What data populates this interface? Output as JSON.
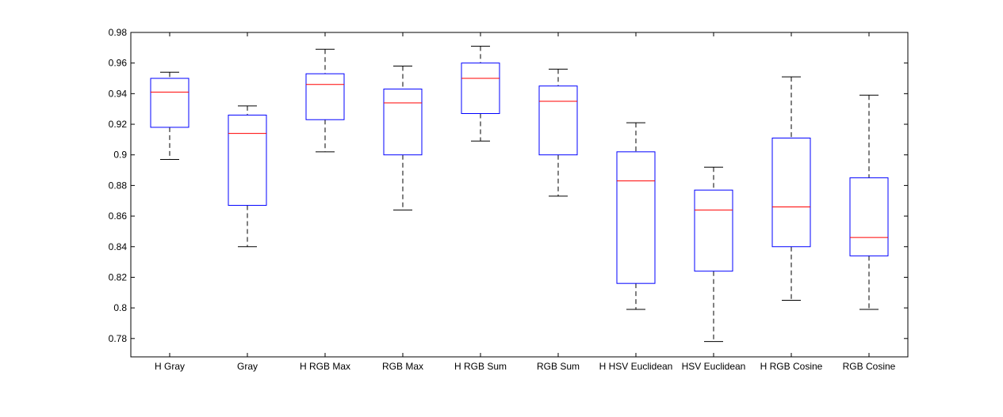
{
  "chart_data": {
    "type": "boxplot",
    "categories": [
      "H Gray",
      "Gray",
      "H RGB Max",
      "RGB Max",
      "H RGB Sum",
      "RGB Sum",
      "H HSV Euclidean",
      "HSV Euclidean",
      "H RGB Cosine",
      "RGB Cosine"
    ],
    "boxes": [
      {
        "whisker_low": 0.897,
        "q1": 0.918,
        "median": 0.941,
        "q3": 0.95,
        "whisker_high": 0.954
      },
      {
        "whisker_low": 0.84,
        "q1": 0.867,
        "median": 0.914,
        "q3": 0.926,
        "whisker_high": 0.932
      },
      {
        "whisker_low": 0.902,
        "q1": 0.923,
        "median": 0.946,
        "q3": 0.953,
        "whisker_high": 0.969
      },
      {
        "whisker_low": 0.864,
        "q1": 0.9,
        "median": 0.934,
        "q3": 0.943,
        "whisker_high": 0.958
      },
      {
        "whisker_low": 0.909,
        "q1": 0.927,
        "median": 0.95,
        "q3": 0.96,
        "whisker_high": 0.971
      },
      {
        "whisker_low": 0.873,
        "q1": 0.9,
        "median": 0.935,
        "q3": 0.945,
        "whisker_high": 0.956
      },
      {
        "whisker_low": 0.799,
        "q1": 0.816,
        "median": 0.883,
        "q3": 0.902,
        "whisker_high": 0.921
      },
      {
        "whisker_low": 0.778,
        "q1": 0.824,
        "median": 0.864,
        "q3": 0.877,
        "whisker_high": 0.892
      },
      {
        "whisker_low": 0.805,
        "q1": 0.84,
        "median": 0.866,
        "q3": 0.911,
        "whisker_high": 0.951
      },
      {
        "whisker_low": 0.799,
        "q1": 0.834,
        "median": 0.846,
        "q3": 0.885,
        "whisker_high": 0.939
      }
    ],
    "yticks": [
      "0.78",
      "0.8",
      "0.82",
      "0.84",
      "0.86",
      "0.88",
      "0.9",
      "0.92",
      "0.94",
      "0.96",
      "0.98"
    ],
    "ylim": [
      0.768,
      0.98
    ],
    "title": "",
    "xlabel": "",
    "ylabel": "",
    "grid": false,
    "colors": {
      "box": "#0000ff",
      "median": "#ff0000",
      "whisker": "#000000",
      "axes": "#000000"
    }
  }
}
